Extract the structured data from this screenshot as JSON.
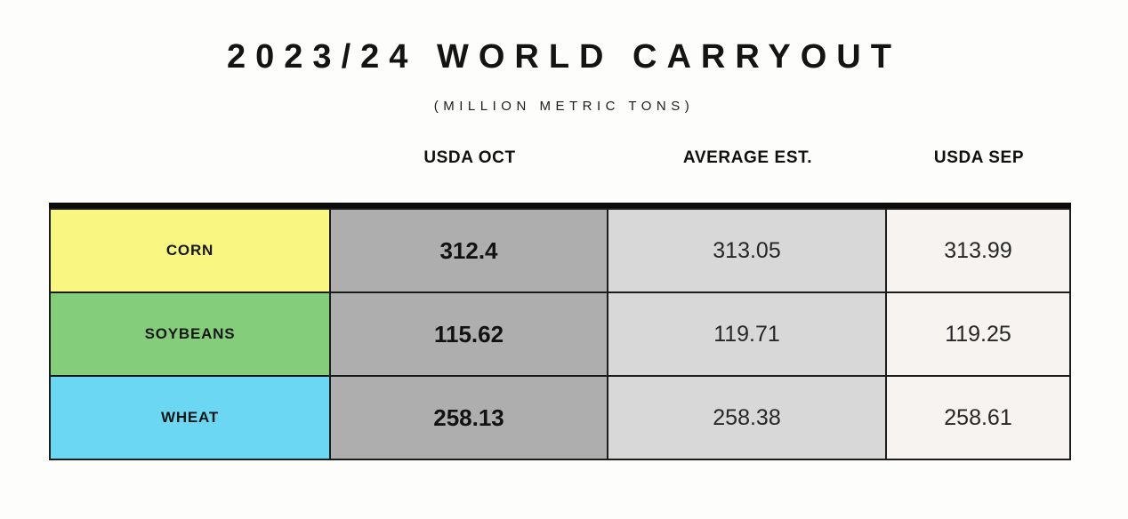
{
  "title": "2023/24 WORLD CARRYOUT",
  "subtitle": "(MILLION METRIC TONS)",
  "columns": [
    "USDA OCT",
    "AVERAGE EST.",
    "USDA SEP"
  ],
  "rows": [
    {
      "label": "CORN",
      "color": "#f9f782",
      "usda_oct": "312.4",
      "average_est": "313.05",
      "usda_sep": "313.99"
    },
    {
      "label": "SOYBEANS",
      "color": "#84ce7b",
      "usda_oct": "115.62",
      "average_est": "119.71",
      "usda_sep": "119.25"
    },
    {
      "label": "WHEAT",
      "color": "#6bd7f2",
      "usda_oct": "258.13",
      "average_est": "258.38",
      "usda_sep": "258.61"
    }
  ],
  "colors": {
    "usda_oct_column": "#aeaeae",
    "average_est_column": "#d8d8d8",
    "usda_sep_column": "#f6f3f0",
    "border": "#1c1c1c",
    "page_background": "#fdfdfc"
  },
  "chart_data": {
    "type": "table",
    "title": "2023/24 WORLD CARRYOUT",
    "subtitle": "(MILLION METRIC TONS)",
    "columns": [
      "",
      "USDA OCT",
      "AVERAGE EST.",
      "USDA SEP"
    ],
    "rows": [
      [
        "CORN",
        312.4,
        313.05,
        313.99
      ],
      [
        "SOYBEANS",
        115.62,
        119.71,
        119.25
      ],
      [
        "WHEAT",
        258.13,
        258.38,
        258.61
      ]
    ]
  }
}
